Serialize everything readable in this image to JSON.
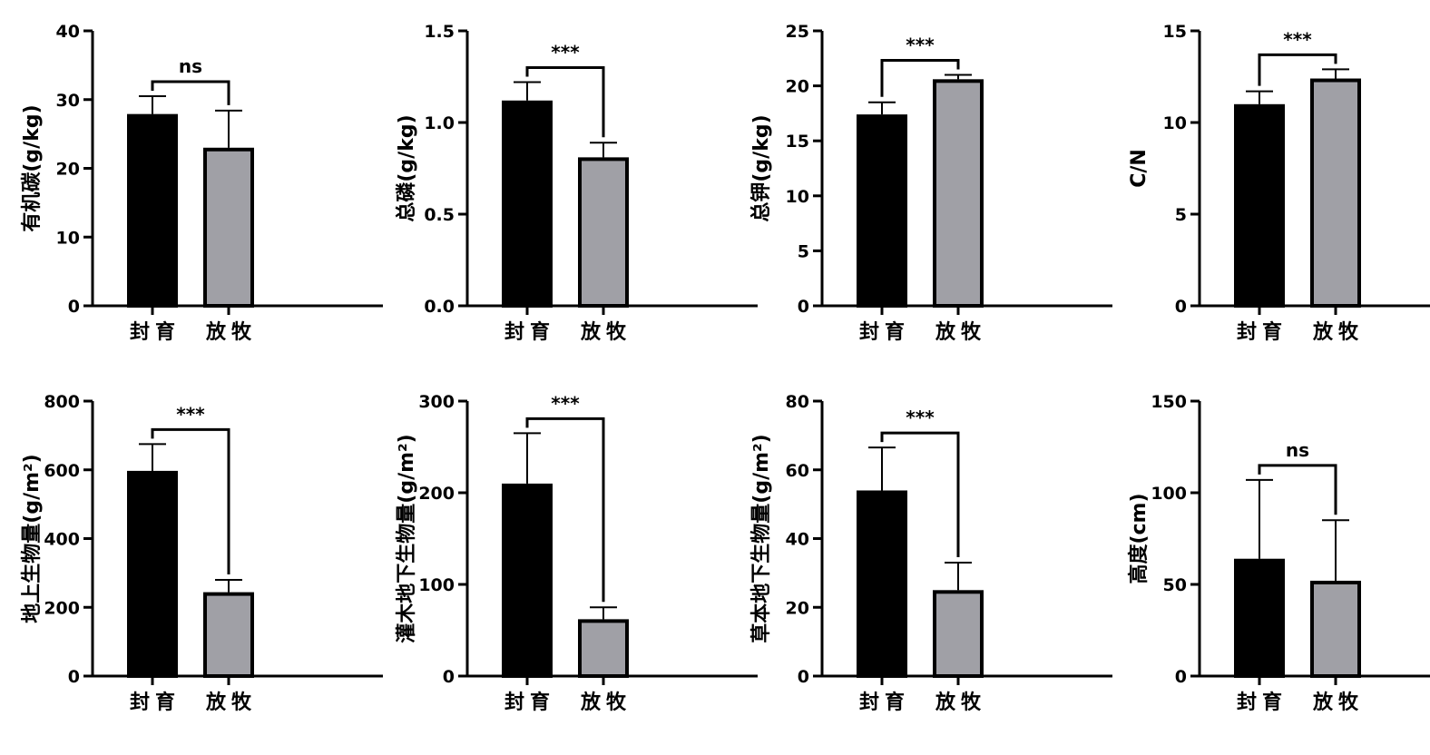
{
  "chart_data": [
    {
      "type": "bar",
      "ylabel": "有机碳(g/kg)",
      "categories": [
        "封育",
        "放牧"
      ],
      "values": [
        27.9,
        23.0
      ],
      "errors": [
        2.6,
        5.4
      ],
      "ylim": [
        0,
        40
      ],
      "yticks": [
        0,
        10,
        20,
        30,
        40
      ],
      "ytick_labels": [
        "0",
        "10",
        "20",
        "30",
        "40"
      ],
      "significance": "ns",
      "bar_colors": [
        "#000000",
        "#a0a0a6"
      ]
    },
    {
      "type": "bar",
      "ylabel": "总磷(g/kg)",
      "categories": [
        "封育",
        "放牧"
      ],
      "values": [
        1.12,
        0.81
      ],
      "errors": [
        0.1,
        0.08
      ],
      "ylim": [
        0,
        1.5
      ],
      "yticks": [
        0,
        0.5,
        1.0,
        1.5
      ],
      "ytick_labels": [
        "0.0",
        "0.5",
        "1.0",
        "1.5"
      ],
      "significance": "***",
      "bar_colors": [
        "#000000",
        "#a0a0a6"
      ]
    },
    {
      "type": "bar",
      "ylabel": "总钾(g/kg)",
      "categories": [
        "封育",
        "放牧"
      ],
      "values": [
        17.4,
        20.6
      ],
      "errors": [
        1.1,
        0.4
      ],
      "ylim": [
        0,
        25
      ],
      "yticks": [
        0,
        5,
        10,
        15,
        20,
        25
      ],
      "ytick_labels": [
        "0",
        "5",
        "10",
        "15",
        "20",
        "25"
      ],
      "significance": "***",
      "bar_colors": [
        "#000000",
        "#a0a0a6"
      ]
    },
    {
      "type": "bar",
      "ylabel": "C/N",
      "categories": [
        "封育",
        "放牧"
      ],
      "values": [
        11.0,
        12.4
      ],
      "errors": [
        0.7,
        0.5
      ],
      "ylim": [
        0,
        15
      ],
      "yticks": [
        0,
        5,
        10,
        15
      ],
      "ytick_labels": [
        "0",
        "5",
        "10",
        "15"
      ],
      "significance": "***",
      "bar_colors": [
        "#000000",
        "#a0a0a6"
      ]
    },
    {
      "type": "bar",
      "ylabel": "地上生物量(g/m²)",
      "categories": [
        "封育",
        "放牧"
      ],
      "values": [
        597,
        244
      ],
      "errors": [
        78,
        36
      ],
      "ylim": [
        0,
        800
      ],
      "yticks": [
        0,
        200,
        400,
        600,
        800
      ],
      "ytick_labels": [
        "0",
        "200",
        "400",
        "600",
        "800"
      ],
      "significance": "***",
      "bar_colors": [
        "#000000",
        "#a0a0a6"
      ]
    },
    {
      "type": "bar",
      "ylabel": "灌木地下生物量(g/m²)",
      "categories": [
        "封育",
        "放牧"
      ],
      "values": [
        210,
        62
      ],
      "errors": [
        55,
        13
      ],
      "ylim": [
        0,
        300
      ],
      "yticks": [
        0,
        100,
        200,
        300
      ],
      "ytick_labels": [
        "0",
        "100",
        "200",
        "300"
      ],
      "significance": "***",
      "bar_colors": [
        "#000000",
        "#a0a0a6"
      ]
    },
    {
      "type": "bar",
      "ylabel": "草本地下生物量(g/m²)",
      "categories": [
        "封育",
        "放牧"
      ],
      "values": [
        54,
        25
      ],
      "errors": [
        12.5,
        8
      ],
      "ylim": [
        0,
        80
      ],
      "yticks": [
        0,
        20,
        40,
        60,
        80
      ],
      "ytick_labels": [
        "0",
        "20",
        "40",
        "60",
        "80"
      ],
      "significance": "***",
      "bar_colors": [
        "#000000",
        "#a0a0a6"
      ]
    },
    {
      "type": "bar",
      "ylabel": "高度(cm)",
      "categories": [
        "封育",
        "放牧"
      ],
      "values": [
        64,
        52
      ],
      "errors": [
        43,
        33
      ],
      "ylim": [
        0,
        150
      ],
      "yticks": [
        0,
        50,
        100,
        150
      ],
      "ytick_labels": [
        "0",
        "50",
        "100",
        "150"
      ],
      "significance": "ns",
      "bar_colors": [
        "#000000",
        "#a0a0a6"
      ]
    }
  ]
}
